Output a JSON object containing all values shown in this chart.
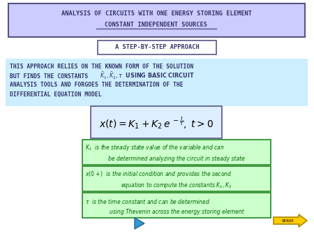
{
  "bg_color": "#ffffff",
  "title_box_color": "#ccccff",
  "title_box_edge": "#555588",
  "title_line1": "ANALYSIS OF CIRCUITS WITH ONE ENERGY STORING ELEMENT",
  "title_line2": "CONSTANT INDEPENDENT SOURCES",
  "subtitle": "A STEP-BY-STEP APPROACH",
  "subtitle_box_color": "#ffffff",
  "subtitle_box_edge": "#555588",
  "desc_box_color": "#cceeff",
  "desc_line1": "THIS APPROACH RELIES ON THE KNOWN FORM OF THE SOLUTION",
  "desc_line3": "ANALYSIS TOOLS AND FORGOES THE DETERMINATION OF THE",
  "desc_line4": "DIFFERENTIAL EQUATION MODEL",
  "eq_box_color": "#ddeeff",
  "eq_box_edge": "#555588",
  "bullet1_box_color": "#ccffcc",
  "bullet1_box_edge": "#228822",
  "bullet2_box_color": "#ccffcc",
  "bullet2_box_edge": "#228822",
  "bullet3_box_color": "#ccffcc",
  "bullet3_box_edge": "#228822",
  "geaux_color": "#ffcc00",
  "geaux_edge": "#aa8800",
  "play_color": "#3399cc",
  "text_color_dark": "#333366",
  "text_color_green": "#006600"
}
